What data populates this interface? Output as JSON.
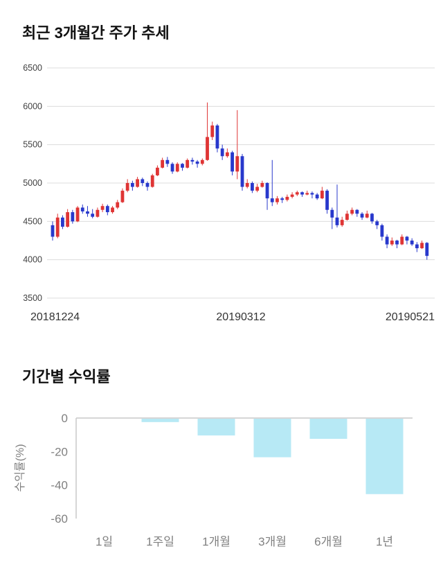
{
  "chart_data": [
    {
      "type": "candlestick",
      "title": "최근 3개월간 주가 추세",
      "ylim": [
        3500,
        6500
      ],
      "y_ticks": [
        6500,
        6000,
        5500,
        5000,
        4500,
        4000,
        3500
      ],
      "x_tick_labels": [
        "20181224",
        "20190312",
        "20190521"
      ],
      "grid": "horizontal",
      "legend": "none",
      "colors": {
        "up": "#df3434",
        "down": "#2838cc",
        "grid": "#dcdcdc",
        "tick_text": "#404040",
        "date_text": "#333333"
      },
      "ohlc": [
        [
          4450,
          4500,
          4250,
          4300
        ],
        [
          4300,
          4600,
          4280,
          4550
        ],
        [
          4550,
          4580,
          4400,
          4430
        ],
        [
          4430,
          4660,
          4420,
          4620
        ],
        [
          4620,
          4650,
          4470,
          4500
        ],
        [
          4500,
          4700,
          4490,
          4680
        ],
        [
          4680,
          4720,
          4600,
          4630
        ],
        [
          4630,
          4700,
          4560,
          4600
        ],
        [
          4600,
          4660,
          4540,
          4560
        ],
        [
          4560,
          4680,
          4550,
          4650
        ],
        [
          4650,
          4730,
          4620,
          4700
        ],
        [
          4700,
          4720,
          4580,
          4620
        ],
        [
          4620,
          4700,
          4600,
          4680
        ],
        [
          4680,
          4780,
          4660,
          4750
        ],
        [
          4750,
          4930,
          4740,
          4900
        ],
        [
          4900,
          5050,
          4880,
          5000
        ],
        [
          5000,
          5030,
          4900,
          4950
        ],
        [
          4950,
          5080,
          4940,
          5050
        ],
        [
          5050,
          5070,
          4960,
          5000
        ],
        [
          5000,
          5020,
          4900,
          4950
        ],
        [
          4950,
          5120,
          4940,
          5100
        ],
        [
          5100,
          5230,
          5090,
          5200
        ],
        [
          5200,
          5330,
          5190,
          5300
        ],
        [
          5300,
          5340,
          5210,
          5250
        ],
        [
          5250,
          5270,
          5120,
          5150
        ],
        [
          5150,
          5270,
          5140,
          5250
        ],
        [
          5250,
          5260,
          5160,
          5200
        ],
        [
          5200,
          5320,
          5190,
          5300
        ],
        [
          5300,
          5330,
          5240,
          5280
        ],
        [
          5280,
          5300,
          5200,
          5250
        ],
        [
          5250,
          5320,
          5230,
          5300
        ],
        [
          5300,
          6050,
          5290,
          5600
        ],
        [
          5600,
          5800,
          5560,
          5750
        ],
        [
          5750,
          5770,
          5400,
          5450
        ],
        [
          5450,
          5500,
          5300,
          5350
        ],
        [
          5350,
          5450,
          5330,
          5400
        ],
        [
          5400,
          5420,
          5100,
          5150
        ],
        [
          5150,
          5950,
          5050,
          5350
        ],
        [
          5350,
          5380,
          4900,
          4950
        ],
        [
          4950,
          5050,
          4930,
          5000
        ],
        [
          5000,
          5020,
          4870,
          4900
        ],
        [
          4900,
          4990,
          4880,
          4950
        ],
        [
          4950,
          5030,
          4940,
          5000
        ],
        [
          5000,
          5010,
          4650,
          4800
        ],
        [
          4800,
          5300,
          4700,
          4750
        ],
        [
          4750,
          4830,
          4720,
          4800
        ],
        [
          4800,
          4820,
          4740,
          4780
        ],
        [
          4780,
          4850,
          4760,
          4820
        ],
        [
          4820,
          4880,
          4800,
          4850
        ],
        [
          4850,
          4900,
          4830,
          4880
        ],
        [
          4880,
          4890,
          4820,
          4850
        ],
        [
          4850,
          4900,
          4840,
          4870
        ],
        [
          4870,
          4890,
          4800,
          4850
        ],
        [
          4850,
          4870,
          4780,
          4800
        ],
        [
          4800,
          4950,
          4790,
          4900
        ],
        [
          4900,
          4920,
          4600,
          4650
        ],
        [
          4650,
          4680,
          4400,
          4550
        ],
        [
          4550,
          4980,
          4420,
          4450
        ],
        [
          4450,
          4560,
          4430,
          4520
        ],
        [
          4520,
          4640,
          4510,
          4600
        ],
        [
          4600,
          4680,
          4580,
          4650
        ],
        [
          4650,
          4660,
          4560,
          4600
        ],
        [
          4600,
          4620,
          4520,
          4550
        ],
        [
          4550,
          4640,
          4540,
          4600
        ],
        [
          4600,
          4610,
          4470,
          4500
        ],
        [
          4500,
          4520,
          4400,
          4450
        ],
        [
          4450,
          4470,
          4250,
          4300
        ],
        [
          4300,
          4330,
          4150,
          4200
        ],
        [
          4200,
          4290,
          4180,
          4250
        ],
        [
          4250,
          4260,
          4150,
          4200
        ],
        [
          4200,
          4330,
          4190,
          4300
        ],
        [
          4300,
          4310,
          4200,
          4250
        ],
        [
          4250,
          4280,
          4180,
          4200
        ],
        [
          4200,
          4230,
          4100,
          4150
        ],
        [
          4150,
          4250,
          4140,
          4220
        ],
        [
          4220,
          4230,
          4000,
          4050
        ]
      ]
    },
    {
      "type": "bar",
      "title": "기간별 수익률",
      "ylabel": "수익률(%)",
      "categories": [
        "1일",
        "1주일",
        "1개월",
        "3개월",
        "6개월",
        "1년"
      ],
      "values": [
        0,
        -2,
        -10,
        -23,
        -12,
        -45
      ],
      "ylim": [
        -60,
        0
      ],
      "y_ticks": [
        0,
        -20,
        -40,
        -60
      ],
      "grid": "off",
      "legend": "none",
      "colors": {
        "bar": "#b7e9f5",
        "axis": "#c9c9c9",
        "text": "#808080"
      }
    }
  ]
}
